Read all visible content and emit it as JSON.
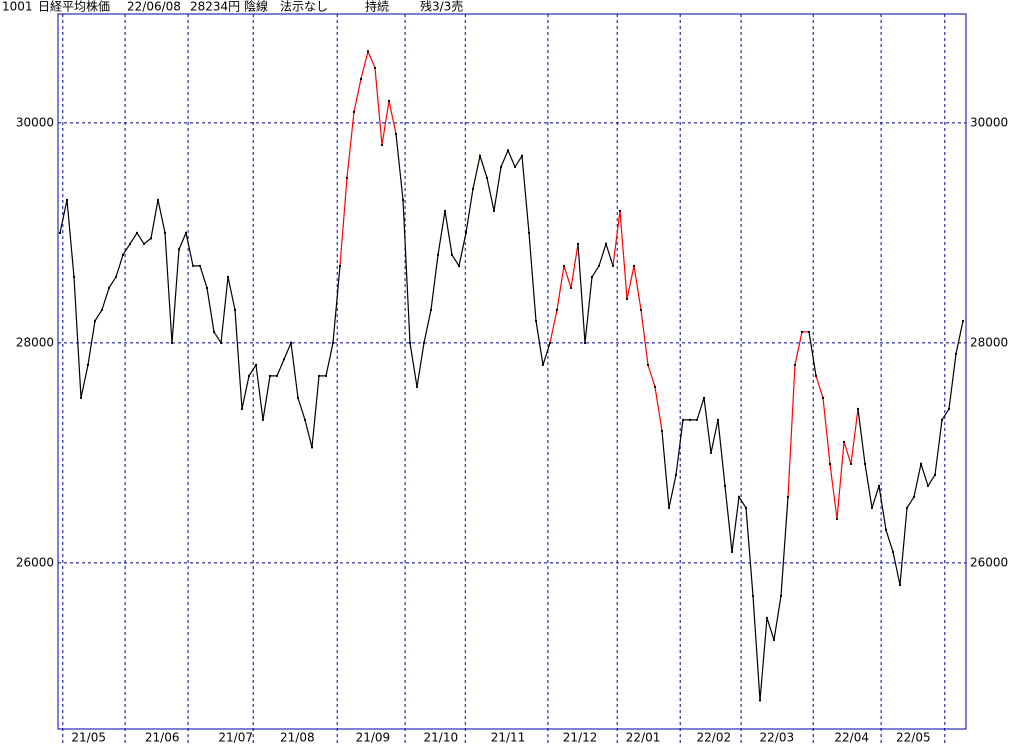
{
  "chart_data": {
    "type": "line",
    "header": [
      "1001",
      "日経平均株価",
      "22/06/08",
      "28234円",
      "陰線",
      "法示なし",
      "持続",
      "残3/3売"
    ],
    "values": [
      29000,
      29300,
      28600,
      27500,
      27800,
      28200,
      28300,
      28500,
      28600,
      28800,
      28900,
      29000,
      28900,
      28950,
      29300,
      29000,
      28000,
      28850,
      29000,
      28700,
      28700,
      28500,
      28100,
      28000,
      28600,
      28300,
      27400,
      27700,
      27800,
      27300,
      27700,
      27700,
      27850,
      28000,
      27500,
      27300,
      27050,
      27700,
      27700,
      28000,
      28700,
      29500,
      30100,
      30400,
      30650,
      30500,
      29800,
      30200,
      29900,
      29300,
      28000,
      27600,
      28000,
      28300,
      28800,
      29200,
      28800,
      28700,
      29000,
      29400,
      29700,
      29500,
      29200,
      29600,
      29750,
      29600,
      29700,
      29000,
      28200,
      27800,
      28000,
      28300,
      28700,
      28500,
      28900,
      28000,
      28600,
      28700,
      28900,
      28700,
      29200,
      28400,
      28700,
      28300,
      27800,
      27600,
      27200,
      26500,
      26800,
      27300,
      27300,
      27300,
      27500,
      27000,
      27300,
      26700,
      26100,
      26600,
      26500,
      25700,
      24750,
      25500,
      25300,
      25700,
      26600,
      27800,
      28100,
      28100,
      27700,
      27500,
      26900,
      26400,
      27100,
      26900,
      27400,
      26900,
      26500,
      26700,
      26300,
      26100,
      25800,
      26500,
      26600,
      26900,
      26700,
      26800,
      27300,
      27400,
      27900,
      28200
    ],
    "colors": [
      "#000000",
      "#000000",
      "#000000",
      "#000000",
      "#000000",
      "#000000",
      "#000000",
      "#000000",
      "#000000",
      "#000000",
      "#000000",
      "#000000",
      "#000000",
      "#000000",
      "#000000",
      "#000000",
      "#000000",
      "#000000",
      "#000000",
      "#000000",
      "#000000",
      "#000000",
      "#000000",
      "#000000",
      "#000000",
      "#000000",
      "#000000",
      "#000000",
      "#000000",
      "#000000",
      "#000000",
      "#000000",
      "#000000",
      "#000000",
      "#000000",
      "#000000",
      "#000000",
      "#000000",
      "#000000",
      "#000000",
      "#000000",
      "#ff0000",
      "#ff0000",
      "#ff0000",
      "#ff0000",
      "#ff0000",
      "#ff0000",
      "#ff0000",
      "#ff0000",
      "#000000",
      "#000000",
      "#000000",
      "#000000",
      "#000000",
      "#000000",
      "#000000",
      "#000000",
      "#000000",
      "#000000",
      "#000000",
      "#000000",
      "#000000",
      "#000000",
      "#000000",
      "#000000",
      "#000000",
      "#000000",
      "#000000",
      "#000000",
      "#000000",
      "#000000",
      "#ff0000",
      "#ff0000",
      "#ff0000",
      "#ff0000",
      "#000000",
      "#000000",
      "#000000",
      "#000000",
      "#000000",
      "#ff0000",
      "#ff0000",
      "#ff0000",
      "#ff0000",
      "#ff0000",
      "#ff0000",
      "#ff0000",
      "#000000",
      "#000000",
      "#000000",
      "#000000",
      "#000000",
      "#000000",
      "#000000",
      "#000000",
      "#000000",
      "#000000",
      "#000000",
      "#000000",
      "#000000",
      "#000000",
      "#000000",
      "#000000",
      "#000000",
      "#000000",
      "#ff0000",
      "#ff0000",
      "#ff0000",
      "#000000",
      "#ff0000",
      "#ff0000",
      "#ff0000",
      "#ff0000",
      "#ff0000",
      "#ff0000",
      "#000000",
      "#000000",
      "#000000",
      "#000000",
      "#000000",
      "#000000",
      "#000000",
      "#000000",
      "#000000",
      "#000000",
      "#000000",
      "#000000",
      "#000000",
      "#000000",
      "#000000"
    ],
    "xlim": [
      0,
      129
    ],
    "xticks": [
      {
        "value": 4.1,
        "label": "21/05"
      },
      {
        "value": 14.6,
        "label": "21/06"
      },
      {
        "value": 25.1,
        "label": "21/07"
      },
      {
        "value": 33.9,
        "label": "21/08"
      },
      {
        "value": 44.7,
        "label": "21/09"
      },
      {
        "value": 54.4,
        "label": "21/10"
      },
      {
        "value": 64,
        "label": "21/11"
      },
      {
        "value": 74.3,
        "label": "21/12"
      },
      {
        "value": 83.3,
        "label": "22/01"
      },
      {
        "value": 93.4,
        "label": "22/02"
      },
      {
        "value": 102.4,
        "label": "22/03"
      },
      {
        "value": 113.1,
        "label": "22/04"
      },
      {
        "value": 121.9,
        "label": "22/05"
      }
    ],
    "xgrid": [
      0.4,
      9.3,
      18.3,
      27.6,
      39.6,
      49.3,
      57.9,
      69.7,
      79.6,
      88.6,
      97.3,
      107.6,
      117.3,
      126.4
    ],
    "ylim": [
      24490,
      30990
    ],
    "yticks": [
      26000,
      28000,
      30000
    ],
    "grid": true,
    "grid_color": "#0000a0"
  }
}
